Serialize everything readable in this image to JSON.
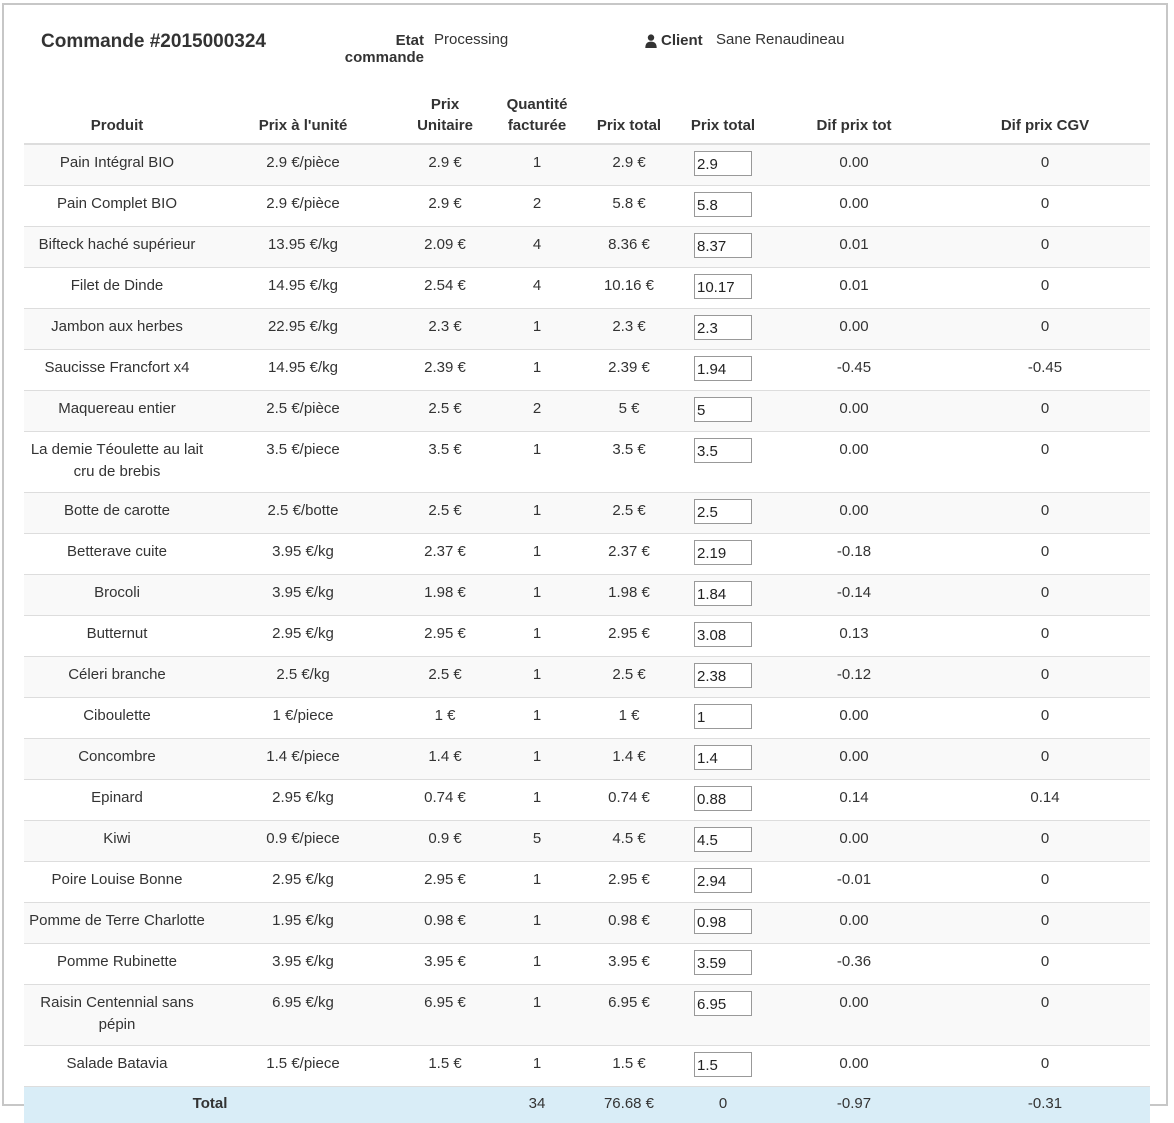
{
  "header": {
    "order_title": "Commande #2015000324",
    "status_label_line1": "Etat",
    "status_label_line2": "commande",
    "status_value": "Processing",
    "client_label": "Client",
    "client_value": "Sane Renaudineau",
    "client_icon": "user-icon"
  },
  "table": {
    "columns": {
      "produit": "Produit",
      "prix_unite": "Prix à l'unité",
      "prix_unitaire_1": "Prix",
      "prix_unitaire_2": "Unitaire",
      "quantite_1": "Quantité",
      "quantite_2": "facturée",
      "prix_total": "Prix total",
      "prix_total_input": "Prix total",
      "dif_prix_tot": "Dif prix tot",
      "dif_prix_cgv": "Dif prix CGV"
    },
    "rows": [
      {
        "produit": "Pain Intégral BIO",
        "prix_unite": "2.9 €/pièce",
        "prix_unitaire": "2.9 €",
        "quantite": "1",
        "prix_total": "2.9 €",
        "input_value": "2.9",
        "dif_tot": "0.00",
        "dif_cgv": "0"
      },
      {
        "produit": "Pain Complet BIO",
        "prix_unite": "2.9 €/pièce",
        "prix_unitaire": "2.9 €",
        "quantite": "2",
        "prix_total": "5.8 €",
        "input_value": "5.8",
        "dif_tot": "0.00",
        "dif_cgv": "0"
      },
      {
        "produit": "Bifteck haché supérieur",
        "prix_unite": "13.95 €/kg",
        "prix_unitaire": "2.09 €",
        "quantite": "4",
        "prix_total": "8.36 €",
        "input_value": "8.37",
        "dif_tot": "0.01",
        "dif_cgv": "0"
      },
      {
        "produit": "Filet de Dinde",
        "prix_unite": "14.95 €/kg",
        "prix_unitaire": "2.54 €",
        "quantite": "4",
        "prix_total": "10.16 €",
        "input_value": "10.17",
        "dif_tot": "0.01",
        "dif_cgv": "0"
      },
      {
        "produit": "Jambon aux herbes",
        "prix_unite": "22.95 €/kg",
        "prix_unitaire": "2.3 €",
        "quantite": "1",
        "prix_total": "2.3 €",
        "input_value": "2.3",
        "dif_tot": "0.00",
        "dif_cgv": "0"
      },
      {
        "produit": "Saucisse Francfort x4",
        "prix_unite": "14.95 €/kg",
        "prix_unitaire": "2.39 €",
        "quantite": "1",
        "prix_total": "2.39 €",
        "input_value": "1.94",
        "dif_tot": "-0.45",
        "dif_cgv": "-0.45"
      },
      {
        "produit": "Maquereau entier",
        "prix_unite": "2.5 €/pièce",
        "prix_unitaire": "2.5 €",
        "quantite": "2",
        "prix_total": "5 €",
        "input_value": "5",
        "dif_tot": "0.00",
        "dif_cgv": "0"
      },
      {
        "produit": "La demie Téoulette au lait cru de brebis",
        "prix_unite": "3.5 €/piece",
        "prix_unitaire": "3.5 €",
        "quantite": "1",
        "prix_total": "3.5 €",
        "input_value": "3.5",
        "dif_tot": "0.00",
        "dif_cgv": "0"
      },
      {
        "produit": "Botte de carotte",
        "prix_unite": "2.5 €/botte",
        "prix_unitaire": "2.5 €",
        "quantite": "1",
        "prix_total": "2.5 €",
        "input_value": "2.5",
        "dif_tot": "0.00",
        "dif_cgv": "0"
      },
      {
        "produit": "Betterave cuite",
        "prix_unite": "3.95 €/kg",
        "prix_unitaire": "2.37 €",
        "quantite": "1",
        "prix_total": "2.37 €",
        "input_value": "2.19",
        "dif_tot": "-0.18",
        "dif_cgv": "0"
      },
      {
        "produit": "Brocoli",
        "prix_unite": "3.95 €/kg",
        "prix_unitaire": "1.98 €",
        "quantite": "1",
        "prix_total": "1.98 €",
        "input_value": "1.84",
        "dif_tot": "-0.14",
        "dif_cgv": "0"
      },
      {
        "produit": "Butternut",
        "prix_unite": "2.95 €/kg",
        "prix_unitaire": "2.95 €",
        "quantite": "1",
        "prix_total": "2.95 €",
        "input_value": "3.08",
        "dif_tot": "0.13",
        "dif_cgv": "0"
      },
      {
        "produit": "Céleri branche",
        "prix_unite": "2.5 €/kg",
        "prix_unitaire": "2.5 €",
        "quantite": "1",
        "prix_total": "2.5 €",
        "input_value": "2.38",
        "dif_tot": "-0.12",
        "dif_cgv": "0"
      },
      {
        "produit": "Ciboulette",
        "prix_unite": "1 €/piece",
        "prix_unitaire": "1 €",
        "quantite": "1",
        "prix_total": "1 €",
        "input_value": "1",
        "dif_tot": "0.00",
        "dif_cgv": "0"
      },
      {
        "produit": "Concombre",
        "prix_unite": "1.4 €/piece",
        "prix_unitaire": "1.4 €",
        "quantite": "1",
        "prix_total": "1.4 €",
        "input_value": "1.4",
        "dif_tot": "0.00",
        "dif_cgv": "0"
      },
      {
        "produit": "Epinard",
        "prix_unite": "2.95 €/kg",
        "prix_unitaire": "0.74 €",
        "quantite": "1",
        "prix_total": "0.74 €",
        "input_value": "0.88",
        "dif_tot": "0.14",
        "dif_cgv": "0.14"
      },
      {
        "produit": "Kiwi",
        "prix_unite": "0.9 €/piece",
        "prix_unitaire": "0.9 €",
        "quantite": "5",
        "prix_total": "4.5 €",
        "input_value": "4.5",
        "dif_tot": "0.00",
        "dif_cgv": "0"
      },
      {
        "produit": "Poire Louise Bonne",
        "prix_unite": "2.95 €/kg",
        "prix_unitaire": "2.95 €",
        "quantite": "1",
        "prix_total": "2.95 €",
        "input_value": "2.94",
        "dif_tot": "-0.01",
        "dif_cgv": "0"
      },
      {
        "produit": "Pomme de Terre Charlotte",
        "prix_unite": "1.95 €/kg",
        "prix_unitaire": "0.98 €",
        "quantite": "1",
        "prix_total": "0.98 €",
        "input_value": "0.98",
        "dif_tot": "0.00",
        "dif_cgv": "0"
      },
      {
        "produit": "Pomme Rubinette",
        "prix_unite": "3.95 €/kg",
        "prix_unitaire": "3.95 €",
        "quantite": "1",
        "prix_total": "3.95 €",
        "input_value": "3.59",
        "dif_tot": "-0.36",
        "dif_cgv": "0"
      },
      {
        "produit": "Raisin Centennial sans pépin",
        "prix_unite": "6.95 €/kg",
        "prix_unitaire": "6.95 €",
        "quantite": "1",
        "prix_total": "6.95 €",
        "input_value": "6.95",
        "dif_tot": "0.00",
        "dif_cgv": "0"
      },
      {
        "produit": "Salade Batavia",
        "prix_unite": "1.5 €/piece",
        "prix_unitaire": "1.5 €",
        "quantite": "1",
        "prix_total": "1.5 €",
        "input_value": "1.5",
        "dif_tot": "0.00",
        "dif_cgv": "0"
      }
    ],
    "total": {
      "label": "Total",
      "quantite": "34",
      "prix_total": "76.68 €",
      "prix_total_input": "0",
      "dif_tot": "-0.97",
      "dif_cgv": "-0.31"
    }
  },
  "colors": {
    "product_link": "#2e6b2e",
    "total_row_bg": "#d9edf7",
    "stripe_bg": "#f9f9f9",
    "border": "#dddddd"
  }
}
